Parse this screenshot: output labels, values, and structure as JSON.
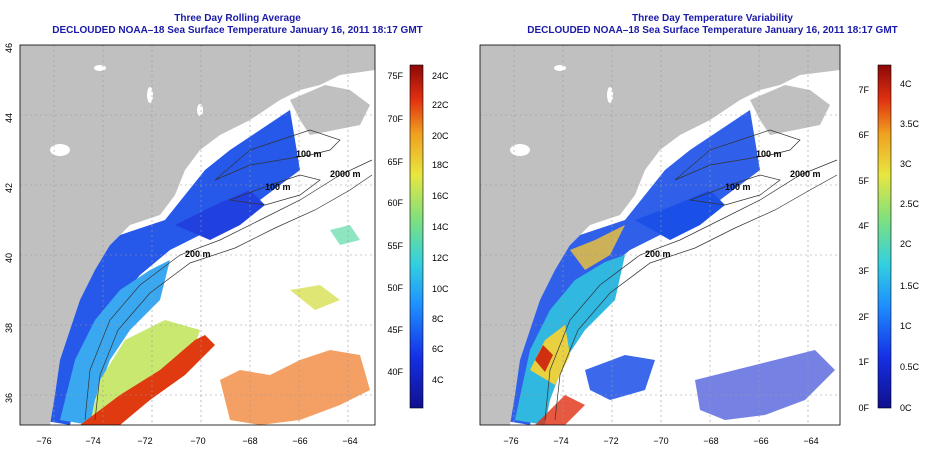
{
  "panels": [
    {
      "title": "Three Day Rolling Average",
      "subtitle": "DECLOUDED NOAA–18 Sea Surface Temperature January 16, 2011 18:17 GMT",
      "colorbar": {
        "right_labels": [
          "24C",
          "22C",
          "20C",
          "18C",
          "16C",
          "14C",
          "12C",
          "10C",
          "8C",
          "6C",
          "4C"
        ],
        "left_labels": [
          "75F",
          "70F",
          "65F",
          "60F",
          "55F",
          "50F",
          "45F",
          "40F"
        ]
      }
    },
    {
      "title": "Three Day Temperature Variability",
      "subtitle": "DECLOUDED NOAA–18 Sea Surface Temperature January 16, 2011 18:17 GMT",
      "colorbar": {
        "right_labels": [
          "4C",
          "3.5C",
          "3C",
          "2.5C",
          "2C",
          "1.5C",
          "1C",
          "0.5C",
          "0C"
        ],
        "left_labels": [
          "7F",
          "6F",
          "5F",
          "4F",
          "3F",
          "2F",
          "1F",
          "0F"
        ]
      }
    }
  ],
  "map": {
    "x_ticks": [
      "−76",
      "−74",
      "−72",
      "−70",
      "−68",
      "−66",
      "−64"
    ],
    "y_ticks": [
      "46",
      "44",
      "42",
      "40",
      "38",
      "36"
    ],
    "contour_labels": [
      "100 m",
      "2000 m",
      "100 m",
      "200 m",
      "200 m",
      "100 m"
    ]
  },
  "colors": {
    "land": "#c0c0c0",
    "water_bg": "#ffffff",
    "title": "#1a1aa8"
  }
}
